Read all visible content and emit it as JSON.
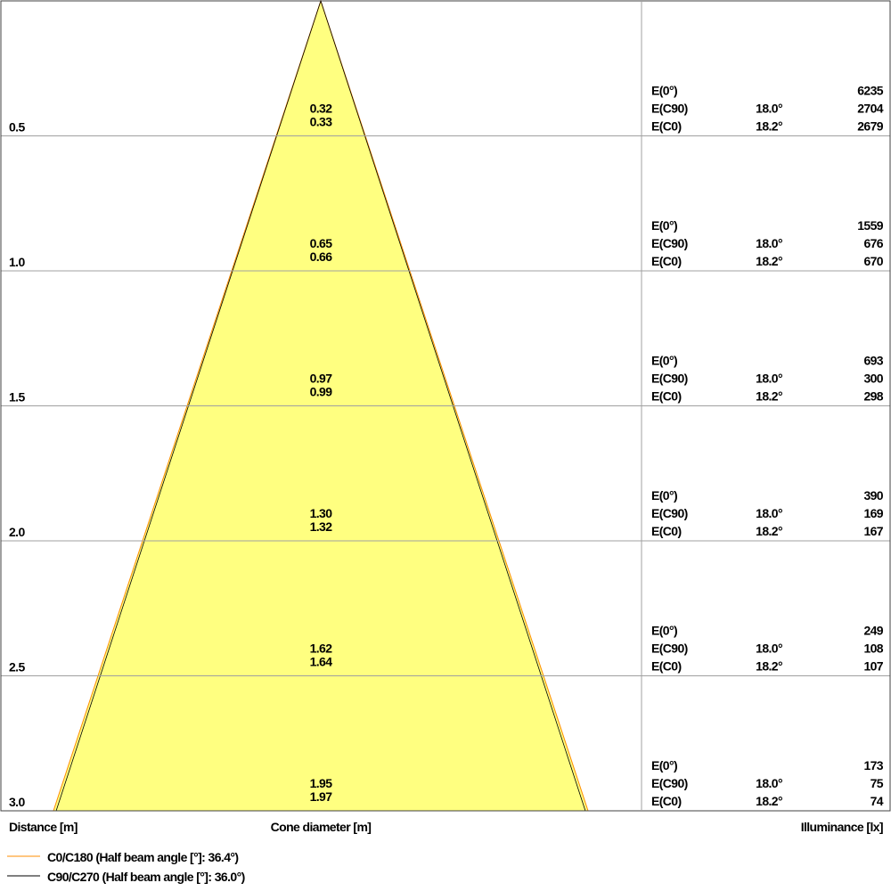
{
  "colors": {
    "fill": "#ffff80",
    "c0_line": "#ff8c00",
    "c90_line": "#000000",
    "grid": "#a0a0a0",
    "frame": "#404040"
  },
  "axis_labels": {
    "distance": "Distance [m]",
    "cone": "Cone diameter [m]",
    "illuminance": "Illuminance [lx]"
  },
  "legend": [
    {
      "label": "C0/C180 (Half beam angle [°]: 36.4°)",
      "color": "#ff8c00"
    },
    {
      "label": "C90/C270 (Half beam angle [°]: 36.0°)",
      "color": "#000000"
    }
  ],
  "rows": [
    {
      "distance": "0.5",
      "d_c90": "0.32",
      "d_c0": "0.33",
      "e0": "6235",
      "ec90_angle": "18.0°",
      "ec90": "2704",
      "ec0_angle": "18.2°",
      "ec0": "2679"
    },
    {
      "distance": "1.0",
      "d_c90": "0.65",
      "d_c0": "0.66",
      "e0": "1559",
      "ec90_angle": "18.0°",
      "ec90": "676",
      "ec0_angle": "18.2°",
      "ec0": "670"
    },
    {
      "distance": "1.5",
      "d_c90": "0.97",
      "d_c0": "0.99",
      "e0": "693",
      "ec90_angle": "18.0°",
      "ec90": "300",
      "ec0_angle": "18.2°",
      "ec0": "298"
    },
    {
      "distance": "2.0",
      "d_c90": "1.30",
      "d_c0": "1.32",
      "e0": "390",
      "ec90_angle": "18.0°",
      "ec90": "169",
      "ec0_angle": "18.2°",
      "ec0": "167"
    },
    {
      "distance": "2.5",
      "d_c90": "1.62",
      "d_c0": "1.64",
      "e0": "249",
      "ec90_angle": "18.0°",
      "ec90": "108",
      "ec0_angle": "18.2°",
      "ec0": "107"
    },
    {
      "distance": "3.0",
      "d_c90": "1.95",
      "d_c0": "1.97",
      "e0": "173",
      "ec90_angle": "18.0°",
      "ec90": "75",
      "ec0_angle": "18.2°",
      "ec0": "74"
    }
  ],
  "row_labels": {
    "e0": "E(0°)",
    "ec90": "E(C90)",
    "ec0": "E(C0)"
  }
}
